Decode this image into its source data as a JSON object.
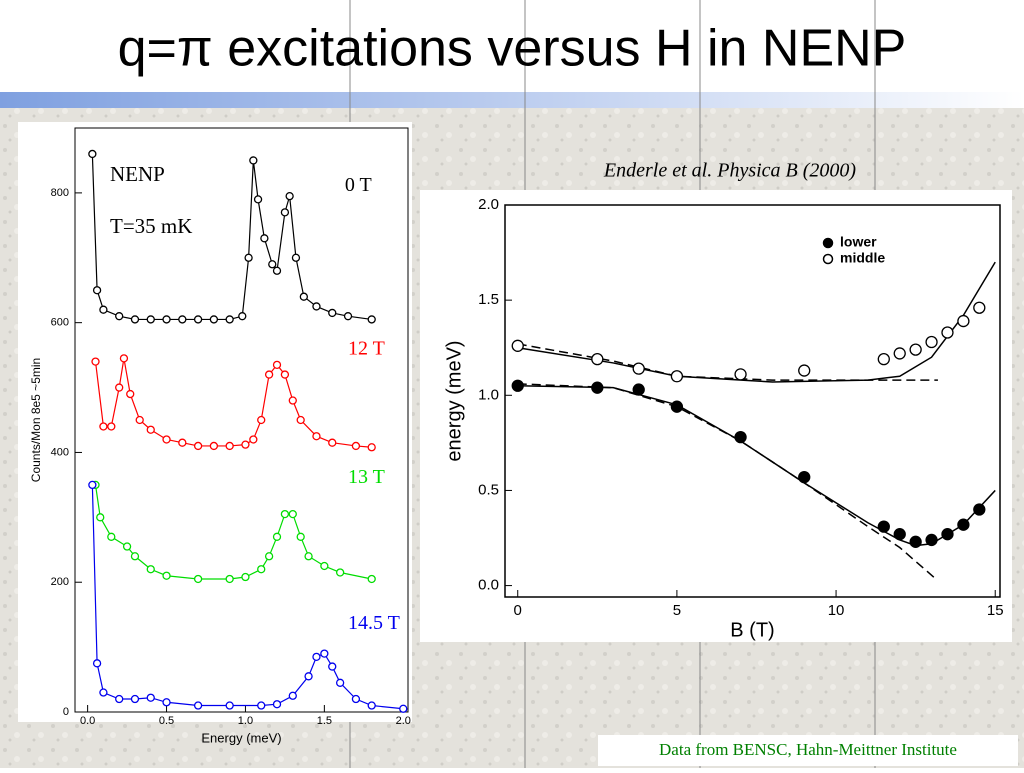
{
  "title": "q=π excitations versus H in NENP",
  "citation": "Enderle et al. Physica B  (2000)",
  "credit": "Data from BENSC, Hahn-Meittner Institute",
  "chart_data": [
    {
      "type": "line",
      "xlabel": "Energy  (meV)",
      "ylabel": "Counts/Mon  8e5  ~5min",
      "annotations": [
        "NENP",
        "T=35 mK"
      ],
      "xlim": [
        -0.08,
        2.03
      ],
      "ylim": [
        0,
        900
      ],
      "xticks": [
        {
          "value": 0,
          "label": "0.0"
        },
        {
          "value": 0.5,
          "label": "0.5"
        },
        {
          "value": 1,
          "label": "1.0"
        },
        {
          "value": 1.5,
          "label": "1.5"
        },
        {
          "value": 2,
          "label": "2.0"
        }
      ],
      "yticks": [
        0,
        200,
        400,
        600,
        800
      ],
      "series": [
        {
          "name": "0 T",
          "color": "#000000",
          "x": [
            0.03,
            0.06,
            0.1,
            0.2,
            0.3,
            0.4,
            0.5,
            0.6,
            0.7,
            0.8,
            0.9,
            0.98,
            1.02,
            1.05,
            1.08,
            1.12,
            1.17,
            1.2,
            1.25,
            1.28,
            1.32,
            1.37,
            1.45,
            1.55,
            1.65,
            1.8
          ],
          "values": [
            860,
            650,
            620,
            610,
            605,
            605,
            605,
            605,
            605,
            605,
            605,
            610,
            700,
            850,
            790,
            730,
            690,
            680,
            770,
            795,
            700,
            640,
            625,
            615,
            610,
            605
          ]
        },
        {
          "name": "12 T",
          "color": "#ff0000",
          "x": [
            0.05,
            0.1,
            0.15,
            0.2,
            0.23,
            0.27,
            0.33,
            0.4,
            0.5,
            0.6,
            0.7,
            0.8,
            0.9,
            1.0,
            1.05,
            1.1,
            1.15,
            1.2,
            1.25,
            1.3,
            1.35,
            1.45,
            1.55,
            1.7,
            1.8
          ],
          "values": [
            540,
            440,
            440,
            500,
            545,
            490,
            450,
            435,
            420,
            415,
            410,
            410,
            410,
            412,
            420,
            450,
            520,
            535,
            520,
            480,
            450,
            425,
            415,
            410,
            408
          ]
        },
        {
          "name": "13 T",
          "color": "#00dd00",
          "x": [
            0.05,
            0.08,
            0.15,
            0.25,
            0.3,
            0.4,
            0.5,
            0.7,
            0.9,
            1.0,
            1.1,
            1.15,
            1.2,
            1.25,
            1.3,
            1.35,
            1.4,
            1.5,
            1.6,
            1.8
          ],
          "values": [
            350,
            300,
            270,
            255,
            240,
            220,
            210,
            205,
            205,
            208,
            220,
            240,
            270,
            305,
            305,
            270,
            240,
            225,
            215,
            205
          ]
        },
        {
          "name": "14.5 T",
          "color": "#0000ee",
          "x": [
            0.03,
            0.06,
            0.1,
            0.2,
            0.3,
            0.4,
            0.5,
            0.7,
            0.9,
            1.1,
            1.2,
            1.3,
            1.4,
            1.45,
            1.5,
            1.55,
            1.6,
            1.7,
            1.8,
            2.0
          ],
          "values": [
            350,
            75,
            30,
            20,
            20,
            22,
            15,
            10,
            10,
            10,
            12,
            25,
            55,
            85,
            90,
            70,
            45,
            20,
            10,
            5
          ]
        }
      ]
    },
    {
      "type": "scatter",
      "xlabel": "B  (T)",
      "ylabel": "energy  (meV)",
      "legend": "upper right",
      "xlim": [
        -0.4,
        15.15
      ],
      "ylim": [
        -0.06,
        2.0
      ],
      "xticks": [
        0,
        5,
        10,
        15
      ],
      "yticks": [
        {
          "value": 0,
          "label": "0.0"
        },
        {
          "value": 0.5,
          "label": "0.5"
        },
        {
          "value": 1,
          "label": "1.0"
        },
        {
          "value": 1.5,
          "label": "1.5"
        },
        {
          "value": 2,
          "label": "2.0"
        }
      ],
      "series": [
        {
          "name": "lower",
          "color": "#000000",
          "marker": "filled",
          "x": [
            0,
            2.5,
            3.8,
            5,
            7,
            9,
            11.5,
            12,
            12.5,
            13,
            13.5,
            14,
            14.5
          ],
          "values": [
            1.05,
            1.04,
            1.03,
            0.94,
            0.78,
            0.57,
            0.31,
            0.27,
            0.23,
            0.24,
            0.27,
            0.32,
            0.4
          ]
        },
        {
          "name": "middle",
          "color": "#000000",
          "marker": "open",
          "x": [
            0,
            2.5,
            3.8,
            5,
            7,
            9,
            11.5,
            12,
            12.5,
            13,
            13.5,
            14,
            14.5
          ],
          "values": [
            1.26,
            1.19,
            1.14,
            1.1,
            1.11,
            1.13,
            1.19,
            1.22,
            1.24,
            1.28,
            1.33,
            1.39,
            1.46
          ]
        }
      ],
      "curves": [
        {
          "style": "solid",
          "x": [
            0,
            3,
            5,
            8,
            11,
            12,
            13,
            14,
            15
          ],
          "values": [
            1.25,
            1.17,
            1.1,
            1.07,
            1.08,
            1.1,
            1.2,
            1.42,
            1.7
          ]
        },
        {
          "style": "solid",
          "x": [
            0,
            3,
            5,
            7,
            9,
            11,
            12,
            12.5,
            13,
            14,
            15
          ],
          "values": [
            1.05,
            1.04,
            0.95,
            0.76,
            0.54,
            0.33,
            0.24,
            0.21,
            0.22,
            0.32,
            0.5
          ]
        },
        {
          "style": "dashed",
          "x": [
            0,
            3,
            5,
            8,
            11,
            13.2
          ],
          "values": [
            1.27,
            1.18,
            1.1,
            1.08,
            1.08,
            1.08
          ]
        },
        {
          "style": "dashed",
          "x": [
            0,
            3,
            5,
            7,
            9,
            11,
            12,
            13.1
          ],
          "values": [
            1.06,
            1.04,
            0.94,
            0.76,
            0.54,
            0.31,
            0.2,
            0.04
          ]
        }
      ]
    }
  ]
}
